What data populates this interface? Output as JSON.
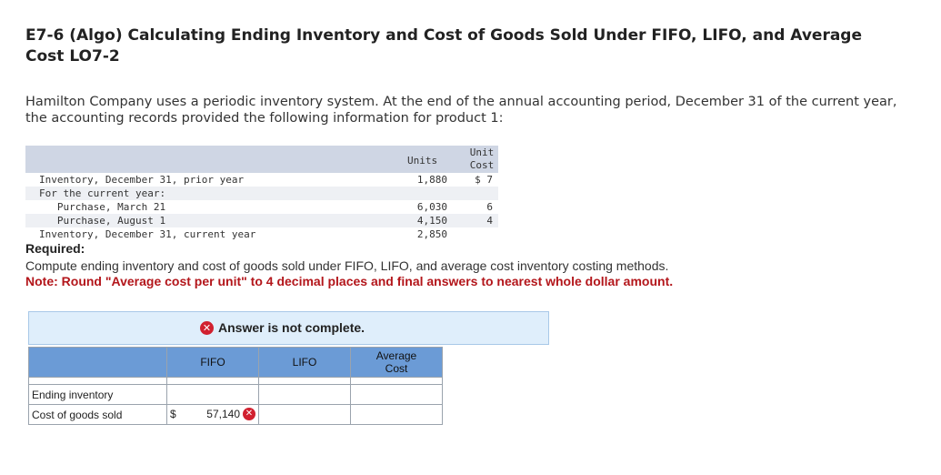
{
  "title": "E7-6 (Algo) Calculating Ending Inventory and Cost of Goods Sold Under FIFO, LIFO, and Average Cost LO7-2",
  "intro": "Hamilton Company uses a periodic inventory system. At the end of the annual accounting period, December 31 of the current year, the accounting records provided the following information for product 1:",
  "inventory_table": {
    "headers": {
      "units": "Units",
      "unit_cost_1": "Unit",
      "unit_cost_2": "Cost"
    },
    "rows": [
      {
        "label": "Inventory, December 31, prior year",
        "units": "1,880",
        "cost": "$ 7"
      },
      {
        "label": "For the current year:",
        "units": "",
        "cost": ""
      },
      {
        "label": "   Purchase, March 21",
        "units": "6,030",
        "cost": "6"
      },
      {
        "label": "   Purchase, August 1",
        "units": "4,150",
        "cost": "4"
      },
      {
        "label": "Inventory, December 31, current year",
        "units": "2,850",
        "cost": ""
      }
    ]
  },
  "required_label": "Required:",
  "compute_text": "Compute ending inventory and cost of goods sold under FIFO, LIFO, and average cost inventory costing methods.",
  "note_text": "Note: Round \"Average cost per unit\" to 4 decimal places and final answers to nearest whole dollar amount.",
  "banner": {
    "message": "Answer is not complete."
  },
  "answer_table": {
    "headers": {
      "fifo": "FIFO",
      "lifo": "LIFO",
      "avg_1": "Average",
      "avg_2": "Cost"
    },
    "rows": [
      {
        "label": "Ending inventory",
        "fifo": "",
        "lifo": "",
        "avg": ""
      },
      {
        "label": "Cost of goods sold",
        "fifo_prefix": "$",
        "fifo": "57,140",
        "lifo": "",
        "avg": ""
      }
    ]
  },
  "colors": {
    "error_red": "#d1202f",
    "note_red": "#b3161b",
    "header_blue": "#6b9bd6",
    "banner_bg": "#dfeefb"
  },
  "icons": {
    "error": "x-circle-icon"
  }
}
